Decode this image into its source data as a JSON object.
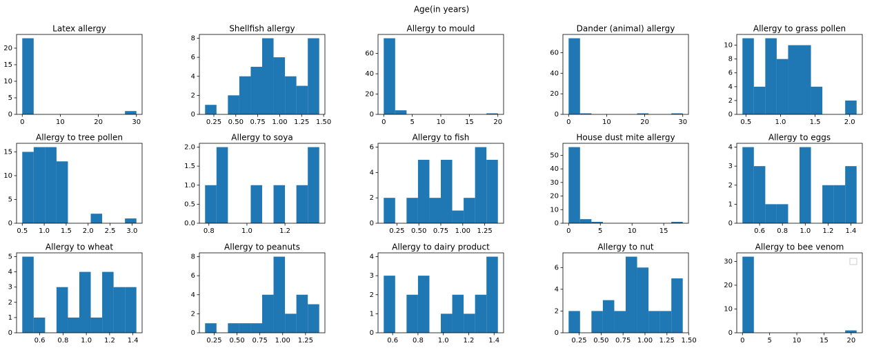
{
  "title": "Age(in years)",
  "chart_data": [
    {
      "type": "histogram",
      "title": "Latex allergy",
      "color": "#1f77b4",
      "bins": [
        0,
        3,
        6,
        9,
        12,
        15,
        18,
        21,
        24,
        27,
        30
      ],
      "counts": [
        23,
        0,
        0,
        0,
        0,
        0,
        0,
        0,
        0,
        1
      ],
      "xlim": [
        -1.5,
        31.5
      ],
      "xticks": [
        0,
        10,
        20,
        30
      ],
      "ylim": [
        0,
        24.15
      ],
      "yticks": [
        0,
        5,
        10,
        15,
        20
      ]
    },
    {
      "type": "histogram",
      "title": "Shellfish allergy",
      "color": "#1f77b4",
      "bins": [
        0.15,
        0.28,
        0.41,
        0.54,
        0.67,
        0.8,
        0.93,
        1.06,
        1.19,
        1.32,
        1.45
      ],
      "counts": [
        1,
        0,
        2,
        4,
        5,
        8,
        6,
        4,
        3,
        8
      ],
      "xlim": [
        0.085,
        1.515
      ],
      "xticks": [
        0.25,
        {
          "value": 0.5,
          "label": "0.50"
        },
        0.75,
        {
          "value": 1,
          "label": "1.00"
        },
        1.25,
        {
          "value": 1.5,
          "label": "1.50"
        }
      ],
      "ylim": [
        0,
        8.4
      ],
      "yticks": [
        0,
        2,
        4,
        6,
        8
      ]
    },
    {
      "type": "histogram",
      "title": "Allergy to mould",
      "color": "#1f77b4",
      "bins": [
        0,
        2,
        4,
        6,
        8,
        10,
        12,
        14,
        16,
        18,
        20
      ],
      "counts": [
        75,
        4,
        0,
        0,
        0,
        0,
        0,
        0,
        0,
        1
      ],
      "xlim": [
        -1,
        21
      ],
      "xticks": [
        0,
        5,
        10,
        15,
        20
      ],
      "ylim": [
        0,
        78.75
      ],
      "yticks": [
        0,
        20,
        40,
        60
      ]
    },
    {
      "type": "histogram",
      "title": "Dander (animal) allergy",
      "color": "#1f77b4",
      "bins": [
        0,
        3,
        6,
        9,
        12,
        15,
        18,
        21,
        24,
        27,
        30
      ],
      "counts": [
        74,
        1,
        0,
        0,
        0,
        0,
        1,
        0,
        0,
        1
      ],
      "xlim": [
        -1.5,
        31.5
      ],
      "xticks": [
        0,
        10,
        20,
        30
      ],
      "ylim": [
        0,
        77.7
      ],
      "yticks": [
        0,
        20,
        40,
        60
      ]
    },
    {
      "type": "histogram",
      "title": "Allergy to grass pollen",
      "color": "#1f77b4",
      "bins": [
        0.45,
        0.615,
        0.78,
        0.945,
        1.11,
        1.275,
        1.44,
        1.605,
        1.77,
        1.935,
        2.1
      ],
      "counts": [
        11,
        4,
        11,
        8,
        10,
        10,
        4,
        0,
        0,
        2
      ],
      "xlim": [
        0.3675,
        2.1825
      ],
      "xticks": [
        0.5,
        {
          "value": 1,
          "label": "1.0"
        },
        1.5,
        {
          "value": 2,
          "label": "2.0"
        }
      ],
      "ylim": [
        0,
        11.55
      ],
      "yticks": [
        0,
        2,
        4,
        6,
        8,
        10
      ]
    },
    {
      "type": "histogram",
      "title": "Allergy to tree pollen",
      "color": "#1f77b4",
      "bins": [
        0.5,
        0.76,
        1.02,
        1.28,
        1.54,
        1.8,
        2.06,
        2.32,
        2.58,
        2.84,
        3.1
      ],
      "counts": [
        15,
        16,
        16,
        13,
        0,
        0,
        2,
        0,
        0,
        1
      ],
      "xlim": [
        0.37,
        3.23
      ],
      "xticks": [
        0.5,
        {
          "value": 1,
          "label": "1.0"
        },
        1.5,
        {
          "value": 2,
          "label": "2.0"
        },
        2.5,
        {
          "value": 3,
          "label": "3.0"
        }
      ],
      "ylim": [
        0,
        16.8
      ],
      "yticks": [
        0,
        5,
        10,
        15
      ]
    },
    {
      "type": "histogram",
      "title": "Allergy to soya",
      "color": "#1f77b4",
      "bins": [
        0.78,
        0.84,
        0.9,
        0.96,
        1.02,
        1.08,
        1.14,
        1.2,
        1.26,
        1.32,
        1.38
      ],
      "counts": [
        1,
        2,
        0,
        0,
        1,
        0,
        1,
        0,
        1,
        2
      ],
      "xlim": [
        0.75,
        1.41
      ],
      "xticks": [
        0.8,
        {
          "value": 1,
          "label": "1.0"
        },
        1.2
      ],
      "ylim": [
        0,
        2.1
      ],
      "yticks": [
        {
          "value": 0,
          "label": "0.0"
        },
        0.5,
        {
          "value": 1,
          "label": "1.0"
        },
        1.5,
        {
          "value": 2,
          "label": "2.0"
        }
      ]
    },
    {
      "type": "histogram",
      "title": "Allergy to fish",
      "color": "#1f77b4",
      "bins": [
        0.1,
        0.23,
        0.36,
        0.49,
        0.62,
        0.75,
        0.88,
        1.01,
        1.14,
        1.27,
        1.4
      ],
      "counts": [
        2,
        0,
        2,
        5,
        2,
        5,
        1,
        2,
        6,
        5
      ],
      "xlim": [
        0.035,
        1.465
      ],
      "xticks": [
        0.25,
        {
          "value": 0.5,
          "label": "0.50"
        },
        0.75,
        {
          "value": 1,
          "label": "1.00"
        },
        1.25
      ],
      "ylim": [
        0,
        6.3
      ],
      "yticks": [
        0,
        2,
        4,
        6
      ]
    },
    {
      "type": "histogram",
      "title": "House dust mite allergy",
      "color": "#1f77b4",
      "bins": [
        0,
        1.8,
        3.6,
        5.4,
        7.2,
        9,
        10.8,
        12.6,
        14.4,
        16.2,
        18
      ],
      "counts": [
        56,
        3,
        1,
        0,
        0,
        0,
        0,
        0,
        0,
        1
      ],
      "xlim": [
        -0.9,
        18.9
      ],
      "xticks": [
        0,
        5,
        10,
        15
      ],
      "ylim": [
        0,
        58.8
      ],
      "yticks": [
        0,
        10,
        20,
        30,
        40,
        50
      ]
    },
    {
      "type": "histogram",
      "title": "Allergy to eggs",
      "color": "#1f77b4",
      "bins": [
        0.45,
        0.55,
        0.65,
        0.75,
        0.85,
        0.95,
        1.05,
        1.15,
        1.25,
        1.35,
        1.45
      ],
      "counts": [
        4,
        3,
        1,
        1,
        0,
        4,
        0,
        2,
        2,
        3
      ],
      "xlim": [
        0.4,
        1.5
      ],
      "xticks": [
        0.6,
        0.8,
        {
          "value": 1,
          "label": "1.0"
        },
        1.2,
        1.4
      ],
      "ylim": [
        0,
        4.2
      ],
      "yticks": [
        0,
        1,
        2,
        3,
        4
      ]
    },
    {
      "type": "histogram",
      "title": "Allergy to wheat",
      "color": "#1f77b4",
      "bins": [
        0.45,
        0.548,
        0.646,
        0.744,
        0.842,
        0.94,
        1.038,
        1.136,
        1.234,
        1.332,
        1.43
      ],
      "counts": [
        5,
        1,
        0,
        3,
        1,
        4,
        1,
        4,
        3,
        3
      ],
      "xlim": [
        0.401,
        1.479
      ],
      "xticks": [
        0.6,
        0.8,
        {
          "value": 1,
          "label": "1.0"
        },
        1.2,
        1.4
      ],
      "ylim": [
        0,
        5.25
      ],
      "yticks": [
        0,
        1,
        2,
        3,
        4,
        5
      ]
    },
    {
      "type": "histogram",
      "title": "Allergy to peanuts",
      "color": "#1f77b4",
      "bins": [
        0.15,
        0.275,
        0.4,
        0.525,
        0.65,
        0.775,
        0.9,
        1.025,
        1.15,
        1.275,
        1.4
      ],
      "counts": [
        1,
        0,
        1,
        1,
        1,
        4,
        8,
        2,
        4,
        3
      ],
      "xlim": [
        0.0875,
        1.4625
      ],
      "xticks": [
        0.25,
        {
          "value": 0.5,
          "label": "0.50"
        },
        0.75,
        {
          "value": 1,
          "label": "1.00"
        },
        1.25
      ],
      "ylim": [
        0,
        8.4
      ],
      "yticks": [
        0,
        2,
        4,
        6,
        8
      ]
    },
    {
      "type": "histogram",
      "title": "Allergy to dairy product",
      "color": "#1f77b4",
      "bins": [
        0.53,
        0.62,
        0.71,
        0.8,
        0.89,
        0.98,
        1.07,
        1.16,
        1.25,
        1.34,
        1.43
      ],
      "counts": [
        3,
        0,
        2,
        3,
        0,
        1,
        2,
        1,
        2,
        4
      ],
      "xlim": [
        0.485,
        1.475
      ],
      "xticks": [
        0.6,
        0.8,
        {
          "value": 1,
          "label": "1.0"
        },
        1.2,
        1.4
      ],
      "ylim": [
        0,
        4.2
      ],
      "yticks": [
        0,
        1,
        2,
        3,
        4
      ]
    },
    {
      "type": "histogram",
      "title": "Allergy to nut",
      "color": "#1f77b4",
      "bins": [
        0.13,
        0.26,
        0.39,
        0.52,
        0.65,
        0.78,
        0.91,
        1.04,
        1.17,
        1.3,
        1.43
      ],
      "counts": [
        2,
        0,
        2,
        3,
        2,
        7,
        6,
        2,
        2,
        5
      ],
      "xlim": [
        0.065,
        1.495
      ],
      "xticks": [
        0.25,
        {
          "value": 0.5,
          "label": "0.50"
        },
        0.75,
        {
          "value": 1,
          "label": "1.00"
        },
        1.25,
        {
          "value": 1.5,
          "label": "1.50"
        }
      ],
      "ylim": [
        0,
        7.35
      ],
      "yticks": [
        0,
        2,
        4,
        6
      ]
    },
    {
      "type": "histogram",
      "title": "Allergy to bee venom",
      "color": "#1f77b4",
      "bins": [
        0,
        2.1,
        4.2,
        6.3,
        8.4,
        10.5,
        12.6,
        14.7,
        16.8,
        18.9,
        21
      ],
      "counts": [
        32,
        0,
        0,
        0,
        0,
        0,
        0,
        0,
        0,
        1
      ],
      "xlim": [
        -1.05,
        22.05
      ],
      "xticks": [
        0,
        5,
        10,
        15,
        20
      ],
      "ylim": [
        0,
        33.6
      ],
      "yticks": [
        0,
        10,
        20,
        30
      ]
    }
  ]
}
